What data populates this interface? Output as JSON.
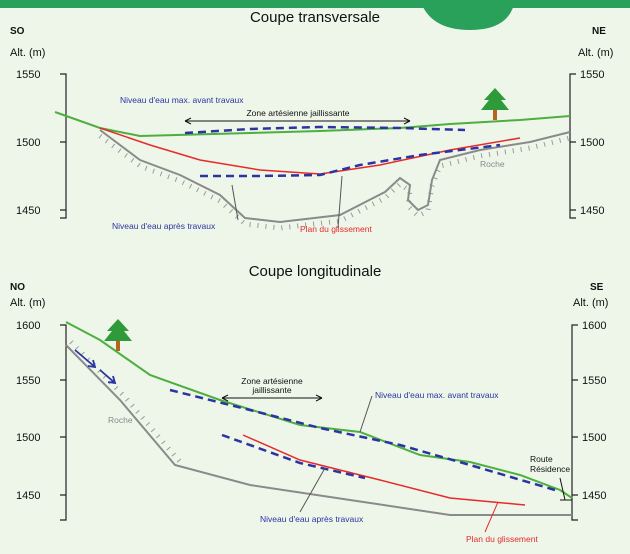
{
  "top": {
    "title": "Coupe transversale",
    "left_dir": "SO",
    "right_dir": "NE",
    "left_axis": "Alt. (m)",
    "right_axis": "Alt. (m)",
    "ticks": [
      "1550",
      "1500",
      "1450"
    ],
    "labels": {
      "water_max": "Niveau d'eau max. avant travaux",
      "artesian": "Zone artésienne jaillissante",
      "rock": "Roche",
      "water_after": "Niveau d'eau après travaux",
      "slip": "Plan du glissement"
    }
  },
  "bottom": {
    "title": "Coupe longitudinale",
    "left_dir": "NO",
    "right_dir": "SE",
    "left_axis": "Alt. (m)",
    "right_axis": "Alt. (m)",
    "ticks": [
      "1600",
      "1550",
      "1500",
      "1450"
    ],
    "labels": {
      "artesian": [
        "Zone artésienne",
        "jaillissante"
      ],
      "water_max": "Niveau d'eau max. avant travaux",
      "rock": "Roche",
      "water_after": "Niveau d'eau après travaux",
      "slip": "Plan du glissement",
      "road": [
        "Route",
        "Résidence"
      ]
    }
  }
}
